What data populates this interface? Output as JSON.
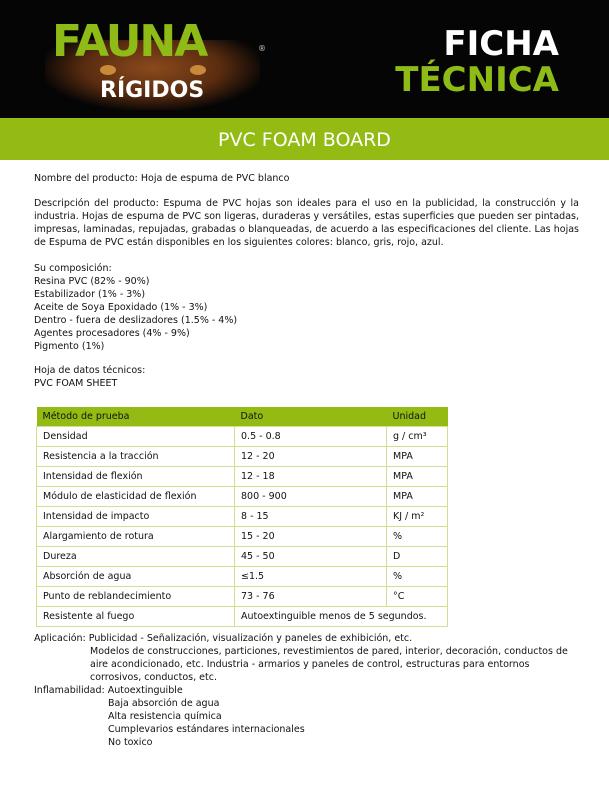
{
  "header": {
    "logo": "FAUNA",
    "registered": "®",
    "subtitle": "RÍGIDOS",
    "title_line1": "FICHA",
    "title_line2": "TÉCNICA"
  },
  "band": {
    "title": "PVC FOAM BOARD"
  },
  "product_name": "Nombre del producto: Hoja de espuma de PVC blanco",
  "description": "Descripción del producto: Espuma de PVC hojas son ideales para el uso en la publicidad, la construcción y la industria. Hojas de espuma de PVC son ligeras, duraderas y versátiles, estas superficies que pueden ser pintadas, impresas, laminadas, repujadas, grabadas o blanqueadas, de acuerdo a las especificaciones del cliente. Las hojas de Espuma de PVC están disponibles en los siguientes colores: blanco, gris, rojo, azul.",
  "composition": [
    "Su composición:",
    "Resina PVC (82% - 90%)",
    "Estabilizador (1% - 3%)",
    "Aceite de Soya Epoxidado (1% - 3%)",
    "Dentro - fuera de deslizadores  (1.5% - 4%)",
    "Agentes procesadores  (4% - 9%)",
    "Pigmento  (1%)"
  ],
  "datasheet": [
    "Hoja de datos técnicos:",
    "PVC FOAM SHEET"
  ],
  "table": {
    "headers": [
      "Método de prueba",
      "Dato",
      "Unidad"
    ],
    "rows": [
      [
        "Densidad",
        "0.5 - 0.8",
        "g / cm³"
      ],
      [
        "Resistencia a la tracción",
        "12 - 20",
        "MPA"
      ],
      [
        "Intensidad de flexión",
        "12 - 18",
        "MPA"
      ],
      [
        "Módulo de elasticidad de flexión",
        "800 - 900",
        "MPA"
      ],
      [
        "Intensidad de impacto",
        "8 - 15",
        "KJ / m²"
      ],
      [
        "Alargamiento de rotura",
        "15 - 20",
        "%"
      ],
      [
        "Dureza",
        "45 - 50",
        "D"
      ],
      [
        "Absorción de agua",
        "≤1.5",
        "%"
      ],
      [
        "Punto de reblandecimiento",
        "73 - 76",
        "°C"
      ]
    ],
    "fire": [
      "Resistente al fuego",
      "Autoextinguible menos de 5 segundos."
    ]
  },
  "application": {
    "line1": "Aplicación: Publicidad - Señalización, visualización y paneles de exhibición, etc.",
    "rest": "Modelos de construcciones, particiones, revestimientos de pared, interior, decoración, conductos de aire acondicionado, etc. Industria - armarios y paneles de control, estructuras para entornos corrosivos, conductos, etc."
  },
  "flammability": {
    "line1": "Inflamabilidad: Autoextinguible",
    "items": [
      "Baja absorción de agua",
      "Alta resistencia química",
      "Cumplevarios estándares internacionales",
      "No toxico"
    ]
  }
}
